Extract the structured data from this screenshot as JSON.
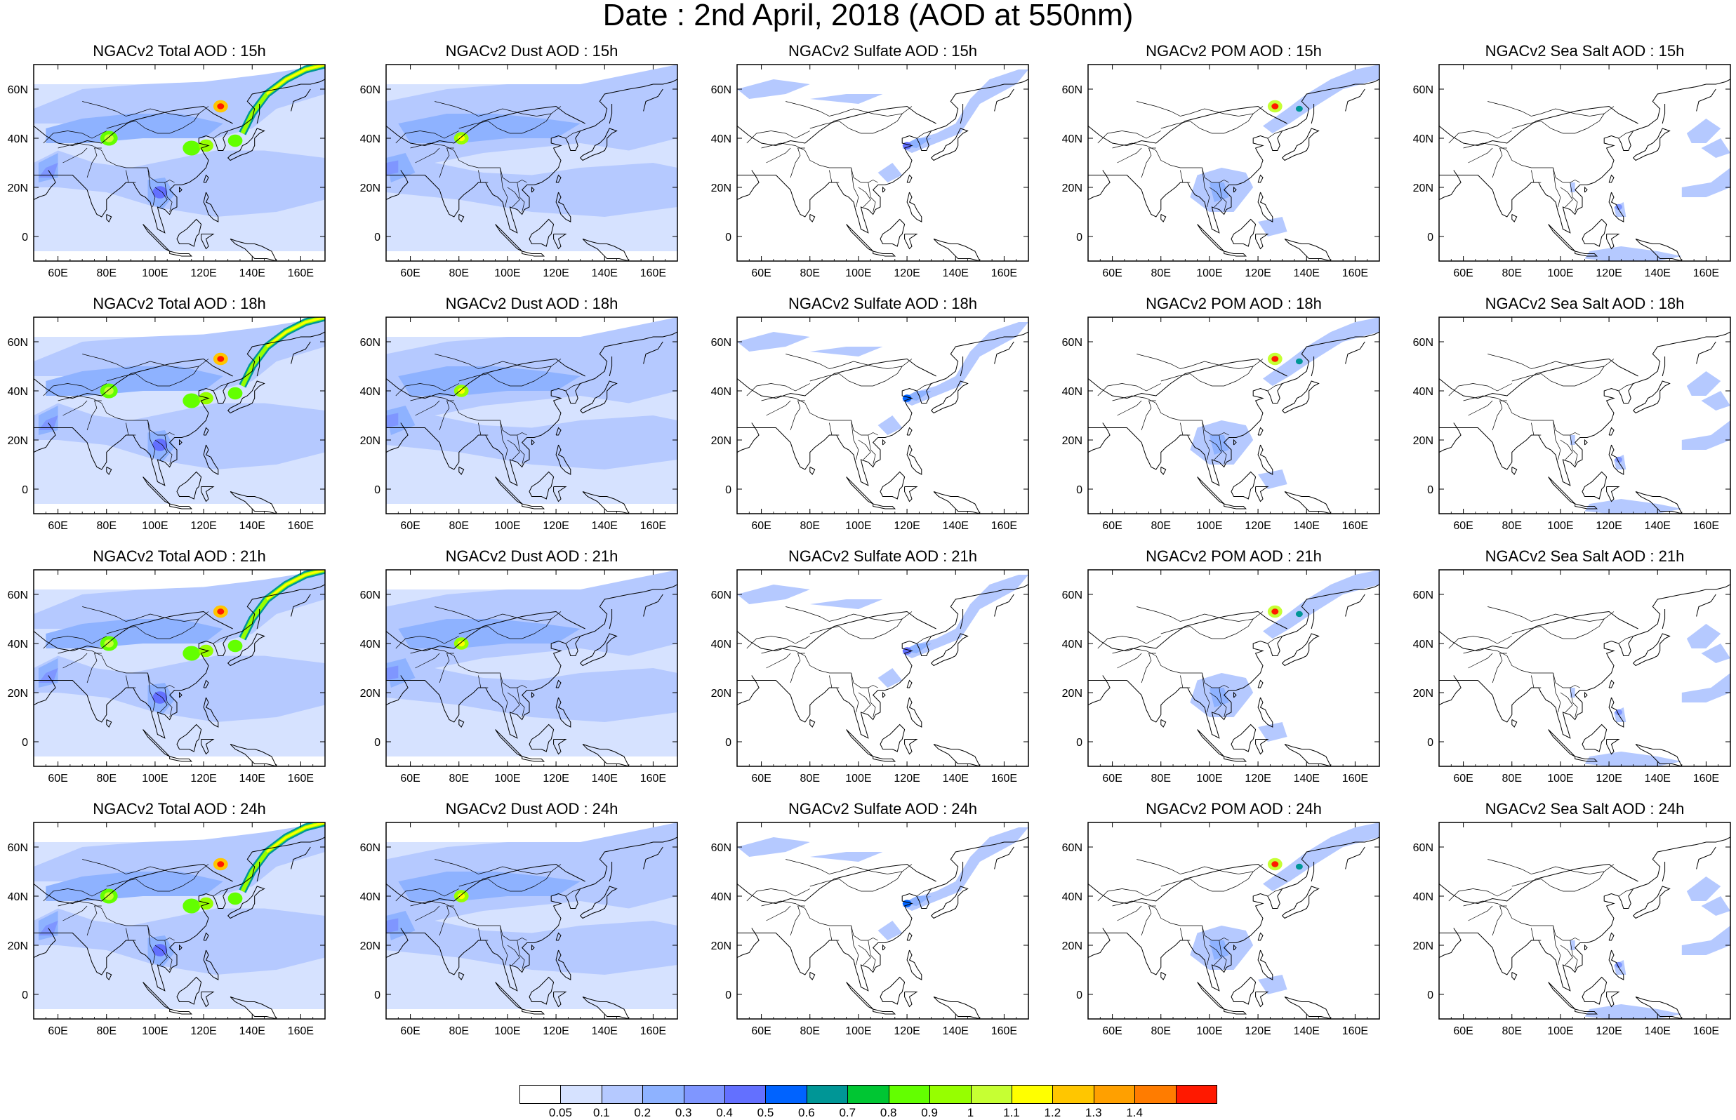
{
  "title": "Date : 2nd April, 2018 (AOD at 550nm)",
  "panels": [
    [
      "NGACv2 Total AOD : 15h",
      "NGACv2 Dust AOD : 15h",
      "NGACv2 Sulfate AOD : 15h",
      "NGACv2 POM AOD : 15h",
      "NGACv2 Sea Salt AOD : 15h"
    ],
    [
      "NGACv2 Total AOD : 18h",
      "NGACv2 Dust AOD : 18h",
      "NGACv2 Sulfate AOD : 18h",
      "NGACv2 POM AOD : 18h",
      "NGACv2 Sea Salt AOD : 18h"
    ],
    [
      "NGACv2 Total AOD : 21h",
      "NGACv2 Dust AOD : 21h",
      "NGACv2 Sulfate AOD : 21h",
      "NGACv2 POM AOD : 21h",
      "NGACv2 Sea Salt AOD : 21h"
    ],
    [
      "NGACv2 Total AOD : 24h",
      "NGACv2 Dust AOD : 24h",
      "NGACv2 Sulfate AOD : 24h",
      "NGACv2 POM AOD : 24h",
      "NGACv2 Sea Salt  AOD : 24h"
    ]
  ],
  "map": {
    "lon_range": [
      50,
      170
    ],
    "lat_range": [
      -10,
      70
    ],
    "x_ticks": [
      "60E",
      "80E",
      "100E",
      "120E",
      "140E",
      "160E"
    ],
    "y_ticks": [
      "60N",
      "40N",
      "20N",
      "0"
    ]
  },
  "colorbar": {
    "colors": [
      "#ffffff",
      "#d6e2ff",
      "#b5c9ff",
      "#8eb2ff",
      "#7f96ff",
      "#6370ff",
      "#0063ff",
      "#009696",
      "#00c633",
      "#63ff00",
      "#96ff00",
      "#c6ff33",
      "#ffff00",
      "#ffc600",
      "#ffa000",
      "#ff7c00",
      "#ff1900"
    ],
    "labels": [
      "0.05",
      "0.1",
      "0.2",
      "0.3",
      "0.4",
      "0.5",
      "0.6",
      "0.7",
      "0.8",
      "0.9",
      "1",
      "1.1",
      "1.2",
      "1.3",
      "1.4"
    ]
  }
}
